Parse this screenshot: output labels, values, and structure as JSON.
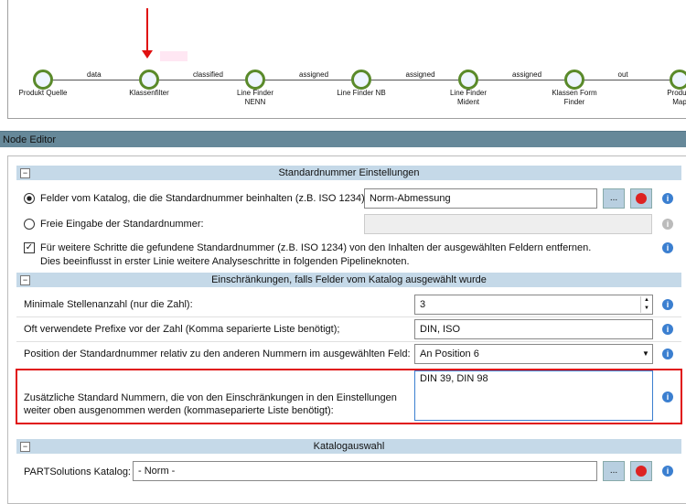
{
  "pipeline": {
    "nodes": [
      "Produkt Quelle",
      "Klassenfilter",
      "Line Finder\nNENN",
      "Line Finder NB",
      "Line Finder\nMident",
      "Klassen Form\nFinder",
      "Produkt\nMap"
    ],
    "edges": [
      "data",
      "classified",
      "assigned",
      "assigned",
      "assigned",
      "out"
    ]
  },
  "node_editor": {
    "title": "Node Editor"
  },
  "section1": {
    "title": "Standardnummer Einstellungen",
    "radio1_label": "Felder vom Katalog, die die Standardnummer beinhalten (z.B. ISO 1234)",
    "radio1_value": "Norm-Abmessung",
    "radio2_label": "Freie Eingabe der Standardnummer:",
    "browse_label": "...",
    "checkbox_line1": "Für weitere Schritte die gefundene Standardnummer (z.B. ISO 1234) von den Inhalten der ausgewählten Feldern entfernen.",
    "checkbox_line2": "Dies beeinflusst in erster Linie weitere Analyseschritte in folgenden Pipelineknoten."
  },
  "section2": {
    "title": "Einschränkungen, falls Felder vom Katalog ausgewählt wurde",
    "min_label": "Minimale Stellenanzahl (nur die Zahl):",
    "min_value": "3",
    "prefix_label": "Oft verwendete Prefixe vor der Zahl (Komma separierte Liste benötigt);",
    "prefix_value": "DIN, ISO",
    "position_label": "Position der Standardnummer relativ zu den anderen Nummern im ausgewählten Feld:",
    "position_value": "An Position 6",
    "extra_label_1": "Zusätzliche Standard Nummern, die von den Einschränkungen in den Einstellungen",
    "extra_label_2": "weiter oben ausgenommen werden (kommaseparierte Liste benötigt):",
    "extra_value": "DIN 39, DIN 98"
  },
  "section3": {
    "title": "Katalogauswahl",
    "catalog_label": "PARTSolutions Katalog:",
    "catalog_value": "- Norm -",
    "browse_label": "..."
  },
  "colors": {
    "highlight": "#e01010",
    "header": "#c5d9e8",
    "node_editor_bar": "#668899"
  }
}
